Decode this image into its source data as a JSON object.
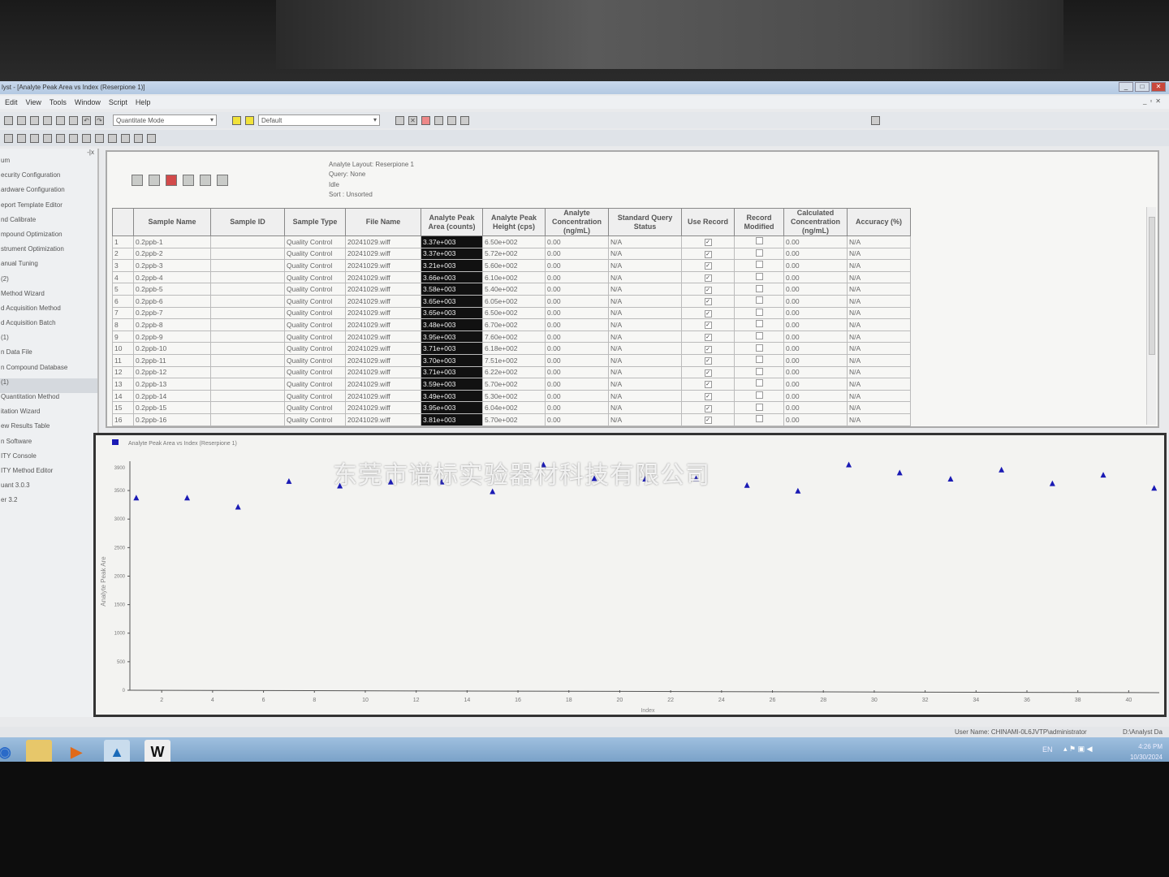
{
  "window": {
    "title": "lyst - [Analyte Peak Area vs Index (Reserpione 1)]"
  },
  "menu": [
    "Edit",
    "View",
    "Tools",
    "Window",
    "Script",
    "Help"
  ],
  "toolbar": {
    "mode": "Quantitate Mode",
    "layout": "Default"
  },
  "sidebar": {
    "items": [
      "um",
      "ecurity Configuration",
      "ardware Configuration",
      "eport Template Editor",
      "nd Calibrate",
      "mpound Optimization",
      "strument Optimization",
      "anual Tuning",
      "(2)",
      "Method Wizard",
      "d Acquisition Method",
      "d Acquisition Batch",
      "(1)",
      "n Data File",
      "n Compound Database",
      "(1)",
      "Quantitation Method",
      "itation Wizard",
      "ew Results Table",
      "n Software",
      "ITY Console",
      "ITY Method Editor",
      "uant 3.0.3",
      "er 3.2"
    ],
    "selected_index": 15
  },
  "query_info": {
    "layout": "Analyte Layout:  Reserpione 1",
    "query": "Query: None",
    "state": "Idle",
    "sort": "Sort : Unsorted"
  },
  "table": {
    "columns": [
      "",
      "Sample Name",
      "Sample ID",
      "Sample Type",
      "File Name",
      "Analyte Peak Area (counts)",
      "Analyte Peak Height (cps)",
      "Analyte Concentration (ng/mL)",
      "Standard Query Status",
      "Use Record",
      "Record Modified",
      "Calculated Concentration (ng/mL)",
      "Accuracy (%)"
    ],
    "rows": [
      [
        "1",
        "0.2ppb-1",
        "",
        "Quality Control",
        "20241029.wiff",
        "3.37e+003",
        "6.50e+002",
        "0.00",
        "N/A",
        true,
        false,
        "0.00",
        "N/A"
      ],
      [
        "2",
        "0.2ppb-2",
        "",
        "Quality Control",
        "20241029.wiff",
        "3.37e+003",
        "5.72e+002",
        "0.00",
        "N/A",
        true,
        false,
        "0.00",
        "N/A"
      ],
      [
        "3",
        "0.2ppb-3",
        "",
        "Quality Control",
        "20241029.wiff",
        "3.21e+003",
        "5.60e+002",
        "0.00",
        "N/A",
        true,
        false,
        "0.00",
        "N/A"
      ],
      [
        "4",
        "0.2ppb-4",
        "",
        "Quality Control",
        "20241029.wiff",
        "3.66e+003",
        "6.10e+002",
        "0.00",
        "N/A",
        true,
        false,
        "0.00",
        "N/A"
      ],
      [
        "5",
        "0.2ppb-5",
        "",
        "Quality Control",
        "20241029.wiff",
        "3.58e+003",
        "5.40e+002",
        "0.00",
        "N/A",
        true,
        false,
        "0.00",
        "N/A"
      ],
      [
        "6",
        "0.2ppb-6",
        "",
        "Quality Control",
        "20241029.wiff",
        "3.65e+003",
        "6.05e+002",
        "0.00",
        "N/A",
        true,
        false,
        "0.00",
        "N/A"
      ],
      [
        "7",
        "0.2ppb-7",
        "",
        "Quality Control",
        "20241029.wiff",
        "3.65e+003",
        "6.50e+002",
        "0.00",
        "N/A",
        true,
        false,
        "0.00",
        "N/A"
      ],
      [
        "8",
        "0.2ppb-8",
        "",
        "Quality Control",
        "20241029.wiff",
        "3.48e+003",
        "6.70e+002",
        "0.00",
        "N/A",
        true,
        false,
        "0.00",
        "N/A"
      ],
      [
        "9",
        "0.2ppb-9",
        "",
        "Quality Control",
        "20241029.wiff",
        "3.95e+003",
        "7.60e+002",
        "0.00",
        "N/A",
        true,
        false,
        "0.00",
        "N/A"
      ],
      [
        "10",
        "0.2ppb-10",
        "",
        "Quality Control",
        "20241029.wiff",
        "3.71e+003",
        "6.18e+002",
        "0.00",
        "N/A",
        true,
        false,
        "0.00",
        "N/A"
      ],
      [
        "11",
        "0.2ppb-11",
        "",
        "Quality Control",
        "20241029.wiff",
        "3.70e+003",
        "7.51e+002",
        "0.00",
        "N/A",
        true,
        false,
        "0.00",
        "N/A"
      ],
      [
        "12",
        "0.2ppb-12",
        "",
        "Quality Control",
        "20241029.wiff",
        "3.71e+003",
        "6.22e+002",
        "0.00",
        "N/A",
        true,
        false,
        "0.00",
        "N/A"
      ],
      [
        "13",
        "0.2ppb-13",
        "",
        "Quality Control",
        "20241029.wiff",
        "3.59e+003",
        "5.70e+002",
        "0.00",
        "N/A",
        true,
        false,
        "0.00",
        "N/A"
      ],
      [
        "14",
        "0.2ppb-14",
        "",
        "Quality Control",
        "20241029.wiff",
        "3.49e+003",
        "5.30e+002",
        "0.00",
        "N/A",
        true,
        false,
        "0.00",
        "N/A"
      ],
      [
        "15",
        "0.2ppb-15",
        "",
        "Quality Control",
        "20241029.wiff",
        "3.95e+003",
        "6.04e+002",
        "0.00",
        "N/A",
        true,
        false,
        "0.00",
        "N/A"
      ],
      [
        "16",
        "0.2ppb-16",
        "",
        "Quality Control",
        "20241029.wiff",
        "3.81e+003",
        "5.70e+002",
        "0.00",
        "N/A",
        true,
        false,
        "0.00",
        "N/A"
      ]
    ]
  },
  "chart_data": {
    "type": "scatter",
    "title": "Analyte Peak Area vs Index (Reserpione 1)",
    "xlabel": "Index",
    "ylabel": "Analyte Peak Are",
    "xlim": [
      1,
      41
    ],
    "ylim": [
      0,
      3900
    ],
    "xticks": [
      2,
      4,
      6,
      8,
      10,
      12,
      14,
      16,
      18,
      20,
      22,
      24,
      26,
      28,
      30,
      32,
      34,
      36,
      38,
      40
    ],
    "yticks": [
      0,
      500,
      1000,
      1500,
      2000,
      2500,
      3000,
      3500
    ],
    "ytop_label": "3900",
    "marker": "triangle",
    "color": "#1a1ab4",
    "grid": false,
    "x": [
      1,
      3,
      5,
      7,
      9,
      11,
      13,
      15,
      17,
      19,
      21,
      23,
      25,
      27,
      29,
      31,
      33,
      35,
      37,
      39,
      41
    ],
    "y": [
      3370,
      3370,
      3210,
      3660,
      3580,
      3650,
      3650,
      3480,
      3950,
      3710,
      3700,
      3710,
      3590,
      3490,
      3950,
      3810,
      3700,
      3860,
      3620,
      3770,
      3540
    ]
  },
  "statusbar": {
    "user": "User Name: CHINAMI-0L6JVTP\\administrator",
    "path": "D:\\Analyst Da"
  },
  "tray": {
    "lang": "EN",
    "time": "4:26 PM",
    "date": "10/30/2024"
  },
  "watermark": "东莞市谱标实验器材科技有限公司"
}
